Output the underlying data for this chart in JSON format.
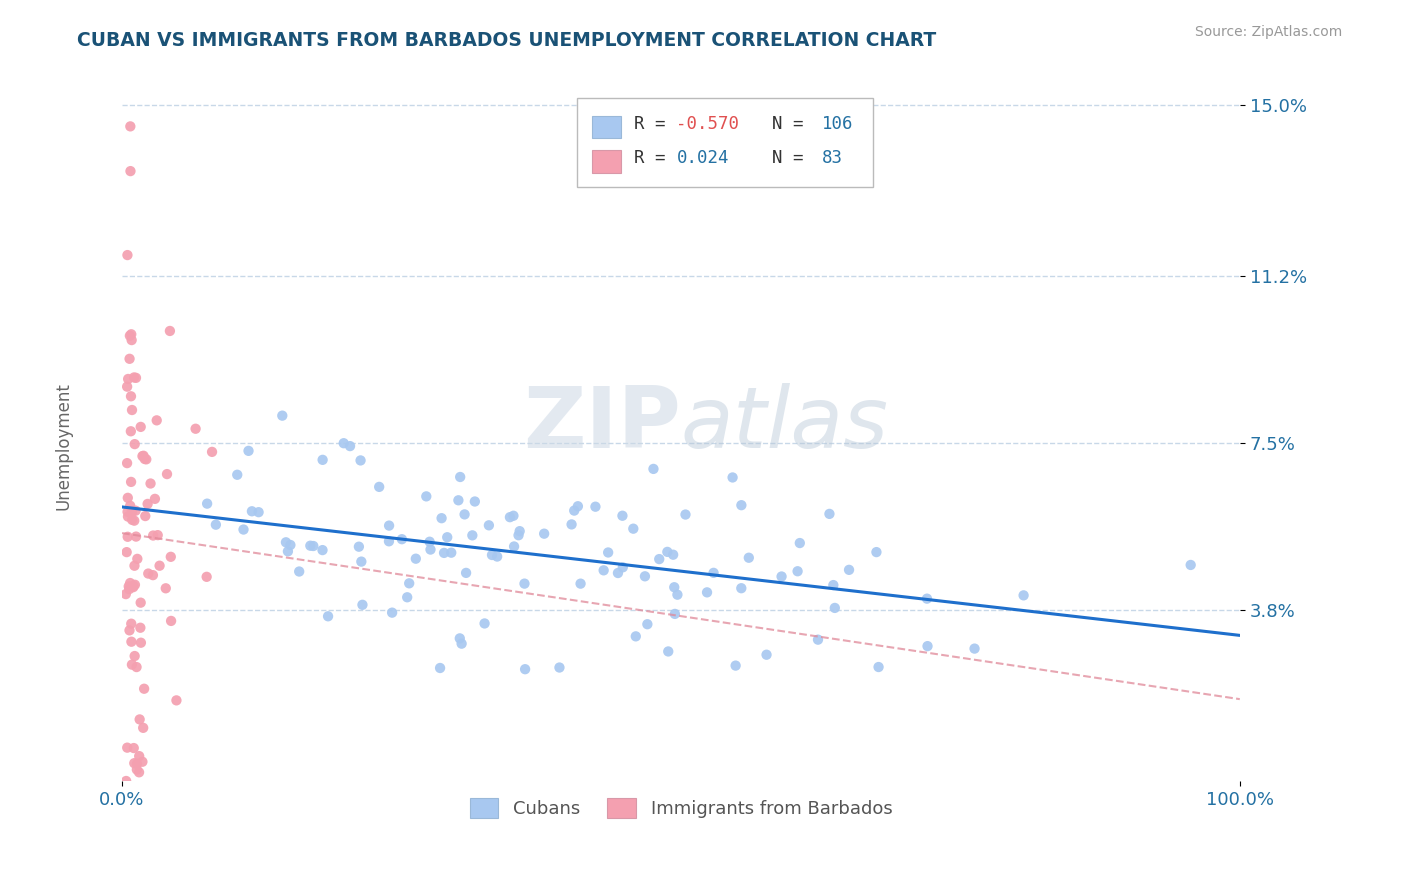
{
  "title": "CUBAN VS IMMIGRANTS FROM BARBADOS UNEMPLOYMENT CORRELATION CHART",
  "source": "Source: ZipAtlas.com",
  "ylabel": "Unemployment",
  "ytick_vals": [
    0.038,
    0.075,
    0.112,
    0.15
  ],
  "ytick_labels": [
    "3.8%",
    "7.5%",
    "11.2%",
    "15.0%"
  ],
  "xlim": [
    0.0,
    1.0
  ],
  "ylim": [
    0.0,
    0.158
  ],
  "r1": "-0.570",
  "n1": "106",
  "r2": "0.024",
  "n2": "83",
  "series1_label": "Cubans",
  "series2_label": "Immigrants from Barbados",
  "series1_color": "#a8c8f0",
  "series2_color": "#f4a0b0",
  "line1_color": "#1e6fcc",
  "line2_color": "#e08898",
  "watermark_zip": "ZIP",
  "watermark_atlas": "atlas",
  "background_color": "#ffffff",
  "grid_color": "#c8d8e8",
  "title_color": "#1a5276",
  "axis_label_color": "#2471a3",
  "ytick_color": "#2471a3",
  "legend_text_color": "#333333",
  "legend_num_color": "#2471a3",
  "legend_neg_color": "#e05050"
}
